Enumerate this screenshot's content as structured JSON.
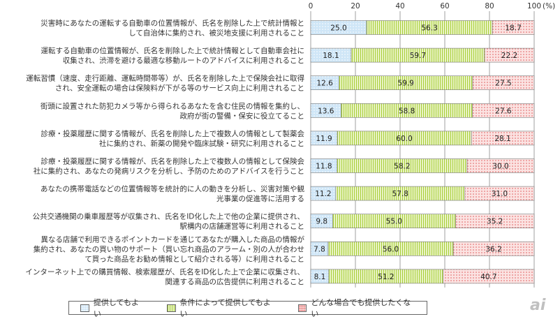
{
  "chart_data": {
    "type": "bar",
    "stacked": "percent",
    "orientation": "horizontal",
    "unit": "(%)",
    "xlim": [
      0,
      100
    ],
    "ticks": [
      0,
      20,
      40,
      60,
      80,
      100
    ],
    "tick_labels": [
      "0",
      "20",
      "40",
      "60",
      "80",
      "100"
    ],
    "categories": [
      [
        "災害時にあなたの運転する自動車の位置情報が、氏名を削除した上で統計情報と",
        "して自治体に集約され、被災地支援に利用されること"
      ],
      [
        "運転する自動車の位置情報が、氏名を削除した上で統計情報として自動車会社に",
        "収集され、渋滞を避ける最適な移動ルートのアドバイスに利用されること"
      ],
      [
        "運転習慣（速度、走行距離、運転時間帯等）が、氏名を削除した上で保険会社に取得",
        "され、安全運転の場合は保険料が下がる等のサービス向上に利用されること"
      ],
      [
        "街頭に設置された防犯カメラ等から得られるあなたを含む住民の情報を集約し、",
        "政府が街の警備・保安に役立てること"
      ],
      [
        "診療・投薬履歴に関する情報が、氏名を削除した上で複数人の情報として製薬会",
        "社に集約され、新薬の開発や臨床試験・研究に利用されること"
      ],
      [
        "診療・投薬履歴に関する情報が、氏名を削除した上で複数人の情報として保険会",
        "社に集約され、あなたの発病リスクを分析し、予防のためのアドバイスを行うこと"
      ],
      [
        "あなたの携帯電話などの位置情報等を統計的に人の動きを分析し、災害対策や観",
        "光事業の促進等に活用する"
      ],
      [
        "公共交通機関の乗車履歴等が収集され、氏名をID化した上で他の企業に提供され、",
        "駅構内の店舗運営等に利用されること"
      ],
      [
        "異なる店舗で利用できるポイントカードを通じてあなたが購入した商品の情報が",
        "集約され、あなたの買い物のサポート（買い忘れ商品のアラーム・別の人が合わせ",
        "て買った商品をお勧め情報として紹介される等）に利用されること"
      ],
      [
        "インターネット上での購買情報、検索履歴が、氏名をID化した上で企業に収集され、",
        "関連する商品の広告提供に利用されること"
      ]
    ],
    "series": [
      {
        "name": "提供してもよい",
        "values": [
          25.0,
          18.1,
          12.6,
          13.6,
          11.9,
          11.8,
          11.2,
          9.8,
          7.8,
          8.1
        ],
        "labels": [
          "25.0",
          "18.1",
          "12.6",
          "13.6",
          "11.9",
          "11.8",
          "11.2",
          "9.8",
          "7.8",
          "8.1"
        ],
        "color": "#cfe6f7"
      },
      {
        "name": "条件によって提供してもよい",
        "values": [
          56.3,
          59.7,
          59.9,
          58.8,
          60.0,
          58.2,
          57.8,
          55.0,
          56.0,
          51.2
        ],
        "labels": [
          "56.3",
          "59.7",
          "59.9",
          "58.8",
          "60.0",
          "58.2",
          "57.8",
          "55.0",
          "56.0",
          "51.2"
        ],
        "color": "#e9f3c4"
      },
      {
        "name": "どんな場合でも提供したくない",
        "values": [
          18.7,
          22.2,
          27.5,
          27.6,
          28.1,
          30.0,
          31.0,
          35.2,
          36.2,
          40.7
        ],
        "labels": [
          "18.7",
          "22.2",
          "27.5",
          "27.6",
          "28.1",
          "30.0",
          "31.0",
          "35.2",
          "36.2",
          "40.7"
        ],
        "color": "#fbe3e2"
      }
    ],
    "legend_position": "bottom",
    "grid": false
  },
  "legend": {
    "items": [
      "提供してもよい",
      "条件によって提供してもよい",
      "どんな場合でも提供したくない"
    ]
  },
  "logo": {
    "text": "ai"
  }
}
